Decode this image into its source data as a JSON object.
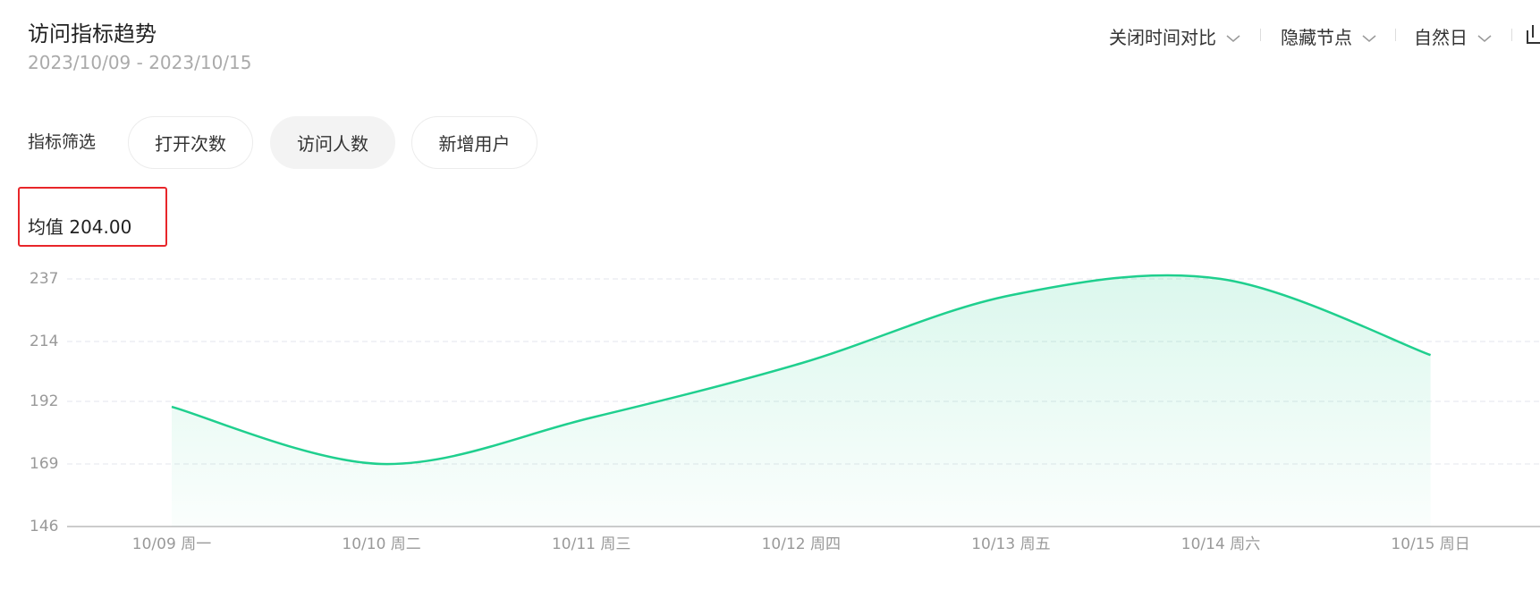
{
  "header": {
    "title": "访问指标趋势",
    "date_range": "2023/10/09 - 2023/10/15",
    "controls": [
      "关闭时间对比",
      "隐藏节点",
      "自然日"
    ]
  },
  "filters": {
    "label": "指标筛选",
    "options": [
      "打开次数",
      "访问人数",
      "新增用户"
    ]
  },
  "mean": {
    "label": "均值",
    "value": "204.00"
  },
  "chart_data": {
    "type": "line",
    "categories": [
      "10/09 周一",
      "10/10 周二",
      "10/11 周三",
      "10/12 周四",
      "10/13 周五",
      "10/14 周六",
      "10/15 周日"
    ],
    "values": [
      190,
      169,
      186,
      206,
      231,
      237,
      209
    ],
    "color": "#1fcf8e",
    "ylim": [
      146,
      237
    ],
    "yticks": [
      146,
      169,
      192,
      214,
      237
    ],
    "grid": true
  }
}
